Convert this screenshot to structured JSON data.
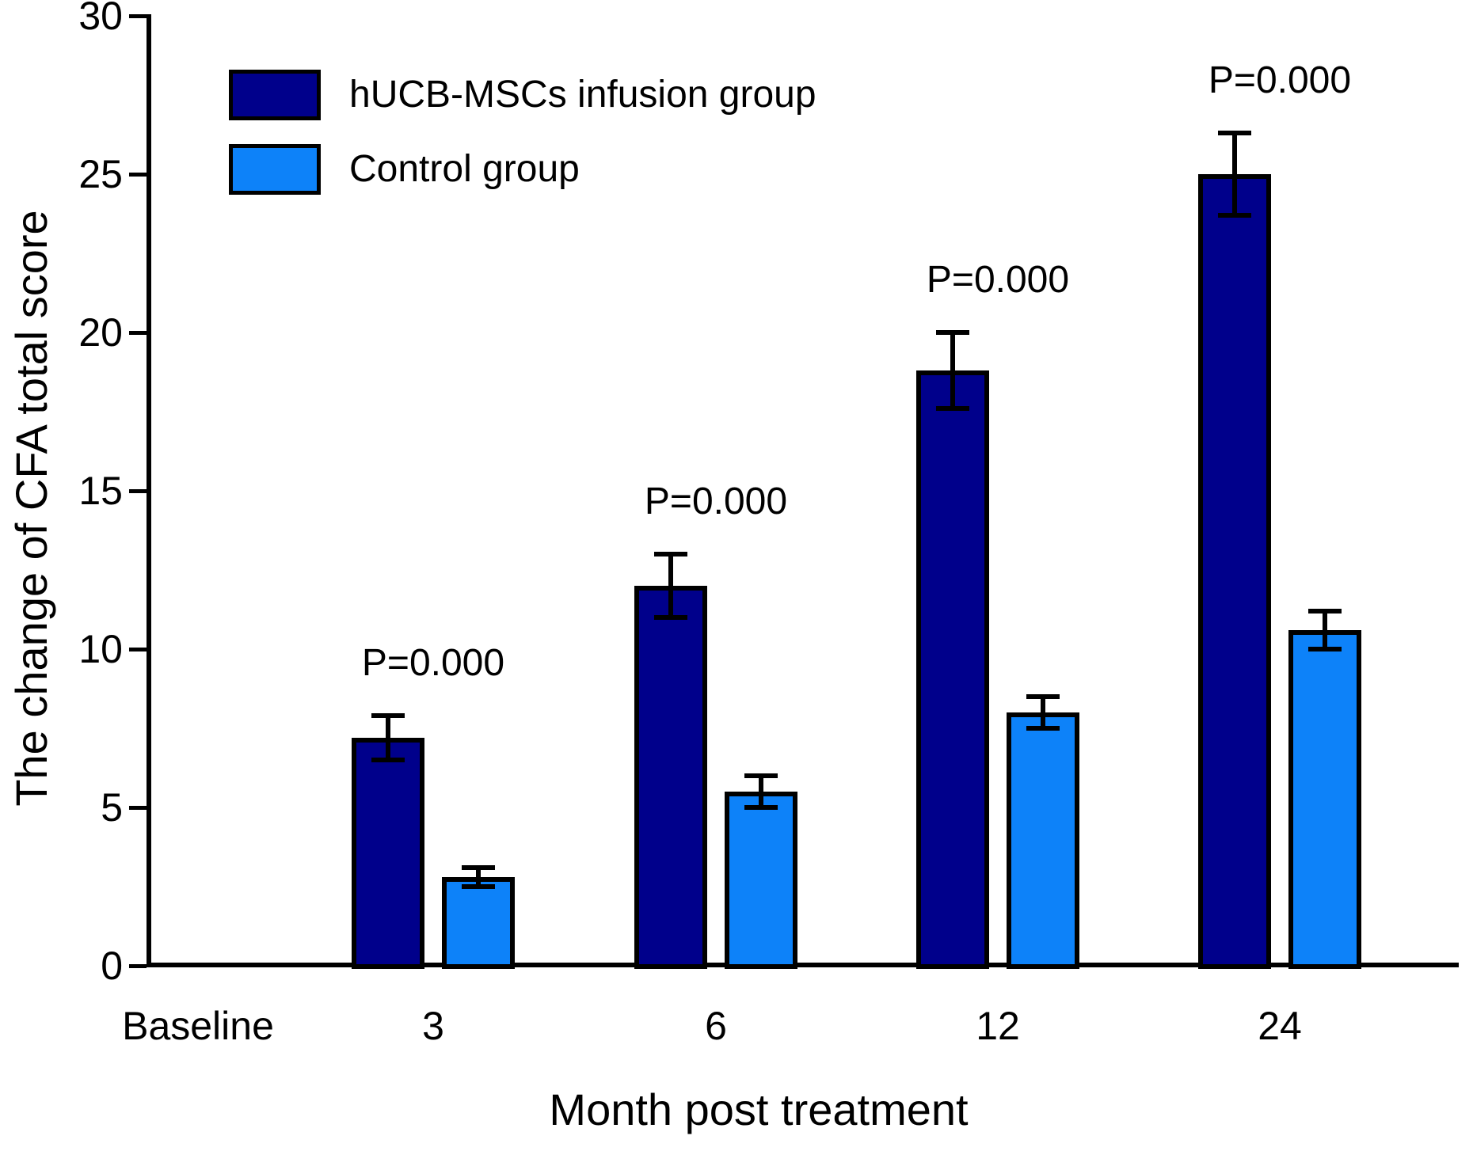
{
  "figure": {
    "y_axis_title": "The change of CFA total score",
    "x_axis_title": "Month post treatment"
  },
  "legend": {
    "items": [
      {
        "label": "hUCB-MSCs infusion group",
        "color": "#00008B"
      },
      {
        "label": "Control group",
        "color": "#0D82F9"
      }
    ]
  },
  "chart_data": {
    "type": "bar",
    "title": "",
    "xlabel": "Month post treatment",
    "ylabel": "The change of CFA total score",
    "categories": [
      "Baseline",
      "3",
      "6",
      "12",
      "24"
    ],
    "series": [
      {
        "name": "hUCB-MSCs infusion group",
        "color": "#00008B",
        "values": [
          null,
          7.2,
          12.0,
          18.8,
          25.0
        ],
        "errors": [
          null,
          0.7,
          1.0,
          1.2,
          1.3
        ]
      },
      {
        "name": "Control group",
        "color": "#0D82F9",
        "values": [
          null,
          2.8,
          5.5,
          8.0,
          10.6
        ],
        "errors": [
          null,
          0.3,
          0.5,
          0.5,
          0.6
        ]
      }
    ],
    "significance_labels": [
      "",
      "P=0.000",
      "P=0.000",
      "P=0.000",
      "P=0.000"
    ],
    "ylim": [
      0,
      30
    ],
    "yticks": [
      0,
      5,
      10,
      15,
      20,
      25,
      30
    ],
    "grid": false,
    "error_bars": true,
    "legend_position": "top-left"
  }
}
